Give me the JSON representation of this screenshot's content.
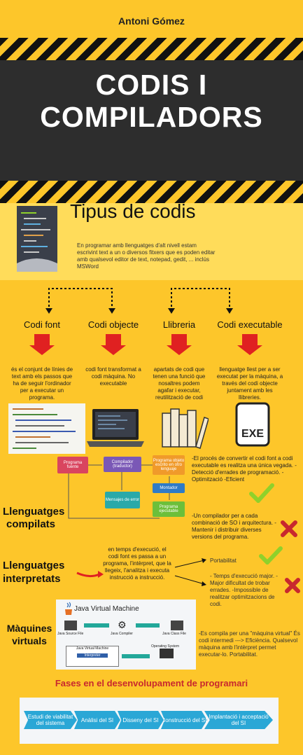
{
  "header": {
    "author": "Antoni Gómez",
    "title_line1": "CODIS I",
    "title_line2": "COMPILADORS"
  },
  "tipus": {
    "heading": "Tipus de codis",
    "text": "En programar amb llenguatges d'alt nivell estam escrivint text a un o diversos fitxers que es poden editar amb qualsevol editor de text, notepad, gedit, ... inclús MSWord"
  },
  "categories": [
    {
      "label": "Codi font",
      "desc": "és el conjunt de línies de text amb els passos que ha de seguir l'ordinador per a executar un programa."
    },
    {
      "label": "Codi objecte",
      "desc": "codi font transformat a codi màquina. No executable"
    },
    {
      "label": "Llibreria",
      "desc": "apartats de codi que tenen una funció que nosaltres podem agafar i executar, reutilització de codi"
    },
    {
      "label": "Codi executable",
      "desc": "llenguatge llest per a ser executat per la màquina, a través del codi objecte juntament amb les llibreries."
    }
  ],
  "compilats": {
    "label_line1": "Llenguatges",
    "label_line2": "compilats",
    "pros": "-El procés de convertir el codi font a codi executable es realitza una única vegada. -Detecció d'errades de programació. -Optimització -Eficient",
    "cons": "-Un compilador per a cada combinació de SO i arquitectura. -Mantenir i distribuir diverses versions del programa.",
    "flow": {
      "fuente": "Programa fuente",
      "compilador": "Compilador (traductor)",
      "objeto": "Programa objeto escrito en otro lenguaje",
      "montador": "Montador",
      "ejecutable": "Programa ejecutable",
      "error": "Mensajes de error"
    }
  },
  "interpretats": {
    "label_line1": "Llenguatges",
    "label_line2": "interpretats",
    "text": "en temps d'execució, el codi font es passa a un programa, l'intèrpret, que la llegeix, l'analitza i executa instrucció a instrucció.",
    "pros": "Portabilitat",
    "cons": "- Temps d'execució major. -Major dificultat de trobar errades. -Impossible de realitzar optimitzacions de codi."
  },
  "virtuals": {
    "label_line1": "Màquines",
    "label_line2": "virtuals",
    "jvm_title": "Java Virtual Machine",
    "jvm_source": "Java Source File",
    "jvm_compiler": "Java Compiler",
    "jvm_class": "Java Class File",
    "jvm_vm": "Java Virtual Machine",
    "jvm_interp": "Interpreter",
    "jvm_os": "Operating System",
    "text": "-Es compila per una \"màquina virtual\" És codi intermedi ---> Eficiència. Qualsevol màquina amb l'intèrpret permet executar-lo. Portabilitat."
  },
  "fases": {
    "heading": "Fases en el desenvolupament de programari",
    "steps": [
      "Estudi de viabilitat del sistema",
      "Anàlisi del SI",
      "Disseny del SI",
      "Construcció del SI",
      "Implantació i acceptació del SI"
    ]
  },
  "colors": {
    "background": "#fdc62a",
    "dark": "#2d2d2d",
    "red": "#e02121",
    "phase": "#2aa7d6",
    "check": "#8fd12b"
  }
}
